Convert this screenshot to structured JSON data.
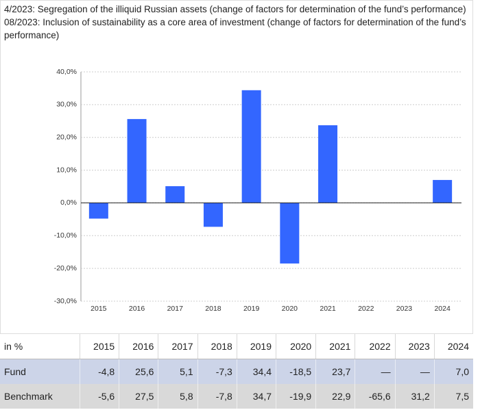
{
  "notes": [
    "4/2023: Segregation of the illiquid Russian assets (change of factors for determination of the fund’s performance)",
    "08/2023: Inclusion of sustainability as a core area of investment (change of factors for determination of the fund’s performance)"
  ],
  "chart_data": {
    "type": "bar",
    "categories": [
      "2015",
      "2016",
      "2017",
      "2018",
      "2019",
      "2020",
      "2021",
      "2022",
      "2023",
      "2024"
    ],
    "values": [
      -4.8,
      25.6,
      5.1,
      -7.3,
      34.4,
      -18.5,
      23.7,
      null,
      null,
      7.0
    ],
    "color": "#3366ff",
    "ylim": [
      -30,
      40
    ],
    "yticks": [
      {
        "value": -30,
        "label": "-30,0%"
      },
      {
        "value": -20,
        "label": "-20,0%"
      },
      {
        "value": -10,
        "label": "-10,0%"
      },
      {
        "value": 0,
        "label": "0,0%"
      },
      {
        "value": 10,
        "label": "10,0%"
      },
      {
        "value": 20,
        "label": "20,0%"
      },
      {
        "value": 30,
        "label": "30,0%"
      },
      {
        "value": 40,
        "label": "40,0%"
      }
    ],
    "grid": true
  },
  "table": {
    "header": [
      "in %",
      "2015",
      "2016",
      "2017",
      "2018",
      "2019",
      "2020",
      "2021",
      "2022",
      "2023",
      "2024"
    ],
    "rows": [
      [
        "Fund",
        "-4,8",
        "25,6",
        "5,1",
        "-7,3",
        "34,4",
        "-18,5",
        "23,7",
        "—",
        "—",
        "7,0"
      ],
      [
        "Benchmark",
        "-5,6",
        "27,5",
        "5,8",
        "-7,8",
        "34,7",
        "-19,9",
        "22,9",
        "-65,6",
        "31,2",
        "7,5"
      ]
    ]
  }
}
